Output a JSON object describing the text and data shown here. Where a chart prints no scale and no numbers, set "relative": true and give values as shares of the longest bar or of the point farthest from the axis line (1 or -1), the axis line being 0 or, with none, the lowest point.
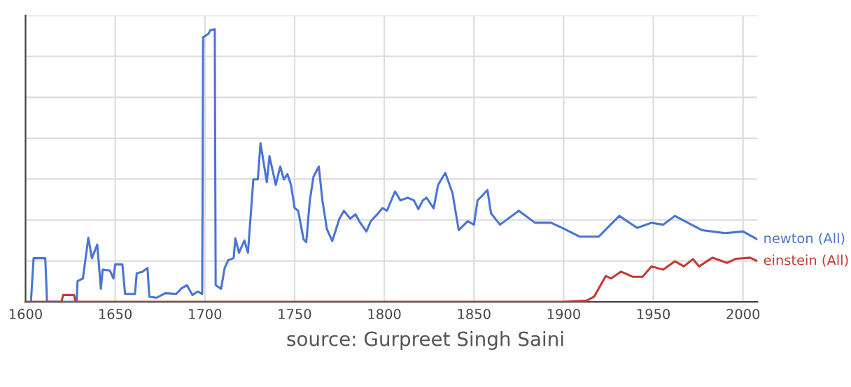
{
  "chart_data": {
    "type": "line",
    "relative": true,
    "grid": true,
    "legend": false,
    "marker": "none",
    "line_style": "solid",
    "xlim": [
      1600,
      2008
    ],
    "xticks": [
      1600,
      1650,
      1700,
      1750,
      1800,
      1850,
      1900,
      1950,
      2000
    ],
    "annotations": [
      "source: Gurpreet Singh Saini"
    ],
    "series": [
      {
        "name": "newton (All)",
        "color": "#4a74d4",
        "x": [
          1603,
          1604.5,
          1611,
          1612,
          1628.5,
          1629,
          1632,
          1635,
          1637,
          1640,
          1642,
          1643,
          1647,
          1649,
          1650,
          1654,
          1655.5,
          1661,
          1662,
          1665,
          1668,
          1669,
          1673,
          1678,
          1684,
          1687,
          1690,
          1693,
          1696,
          1698.5,
          1699,
          1702,
          1703,
          1705.5,
          1706,
          1709,
          1711,
          1713,
          1716,
          1717,
          1719,
          1722,
          1724,
          1727,
          1729.5,
          1731,
          1734.5,
          1736,
          1739.5,
          1742,
          1744,
          1746,
          1748,
          1750,
          1752,
          1755,
          1756.5,
          1758.5,
          1760.5,
          1763.5,
          1765.5,
          1768,
          1771,
          1775,
          1777.5,
          1781,
          1784,
          1786,
          1790,
          1792.5,
          1796.5,
          1799,
          1801.5,
          1806,
          1809,
          1813,
          1816.5,
          1819,
          1821.5,
          1823.5,
          1827.5,
          1830,
          1834,
          1838,
          1841.5,
          1846.5,
          1850,
          1852,
          1855,
          1857.5,
          1859.5,
          1864.5,
          1875,
          1884,
          1893,
          1900.5,
          1909,
          1919.5,
          1931,
          1941,
          1949,
          1955.5,
          1962,
          1977,
          1990,
          2000,
          2008
        ],
        "values": [
          0,
          0.16,
          0.16,
          0,
          0,
          0.076,
          0.086,
          0.235,
          0.16,
          0.21,
          0.048,
          0.118,
          0.115,
          0.086,
          0.137,
          0.137,
          0.029,
          0.029,
          0.105,
          0.11,
          0.124,
          0.019,
          0.015,
          0.032,
          0.029,
          0.05,
          0.061,
          0.025,
          0.038,
          0.029,
          0.97,
          0.983,
          0.996,
          1.0,
          0.061,
          0.048,
          0.124,
          0.153,
          0.16,
          0.233,
          0.18,
          0.225,
          0.18,
          0.449,
          0.449,
          0.582,
          0.439,
          0.534,
          0.429,
          0.496,
          0.449,
          0.468,
          0.429,
          0.344,
          0.334,
          0.229,
          0.219,
          0.372,
          0.458,
          0.496,
          0.372,
          0.267,
          0.223,
          0.305,
          0.334,
          0.305,
          0.321,
          0.296,
          0.258,
          0.296,
          0.324,
          0.344,
          0.334,
          0.405,
          0.372,
          0.382,
          0.372,
          0.34,
          0.372,
          0.382,
          0.343,
          0.429,
          0.473,
          0.4,
          0.263,
          0.296,
          0.283,
          0.372,
          0.392,
          0.41,
          0.325,
          0.283,
          0.334,
          0.29,
          0.29,
          0.267,
          0.239,
          0.239,
          0.315,
          0.271,
          0.29,
          0.283,
          0.315,
          0.263,
          0.252,
          0.258,
          0.229
        ]
      },
      {
        "name": "einstein (All)",
        "color": "#c53a32",
        "x": [
          1600,
          1620,
          1621,
          1627,
          1628,
          1900,
          1913,
          1917,
          1923.5,
          1926.5,
          1932,
          1938.5,
          1944,
          1949,
          1955.5,
          1962,
          1967,
          1972,
          1975.5,
          1983,
          1991,
          1996,
          2004,
          2008
        ],
        "values": [
          0,
          0,
          0.025,
          0.025,
          0,
          0,
          0.005,
          0.019,
          0.095,
          0.086,
          0.111,
          0.092,
          0.092,
          0.13,
          0.118,
          0.149,
          0.13,
          0.157,
          0.13,
          0.162,
          0.143,
          0.158,
          0.162,
          0.149
        ]
      }
    ]
  }
}
